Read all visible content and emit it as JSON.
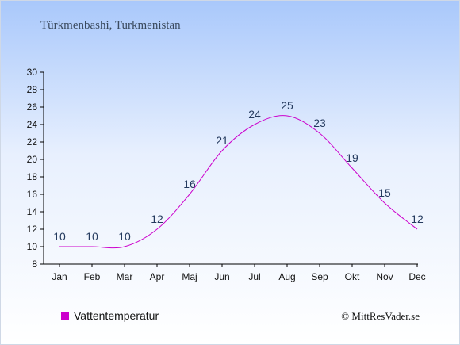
{
  "subtitle": "Türkmenbashi, Turkmenistan",
  "credit": "© MittResVader.se",
  "chart_data": {
    "type": "line",
    "categories": [
      "Jan",
      "Feb",
      "Mar",
      "Apr",
      "Maj",
      "Jun",
      "Jul",
      "Aug",
      "Sep",
      "Okt",
      "Nov",
      "Dec"
    ],
    "series": [
      {
        "name": "Vattentemperatur",
        "values": [
          10,
          10,
          10,
          12,
          16,
          21,
          24,
          25,
          23,
          19,
          15,
          12
        ],
        "color": "#cc00cc"
      }
    ],
    "ylim": [
      8,
      30
    ],
    "yticks": [
      8,
      10,
      12,
      14,
      16,
      18,
      20,
      22,
      24,
      26,
      28,
      30
    ],
    "grid": false,
    "legend_placement": "bottom-left"
  }
}
